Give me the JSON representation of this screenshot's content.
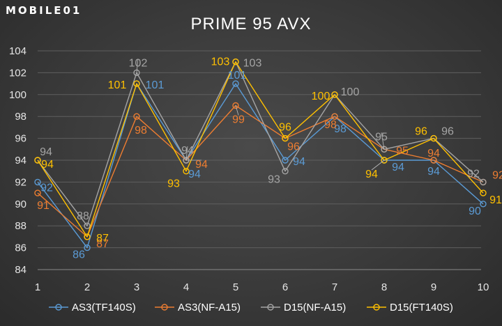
{
  "logo": {
    "text": "MOBILE01"
  },
  "chart_data": {
    "type": "line",
    "title": "PRIME 95 AVX",
    "xlabel": "",
    "ylabel": "",
    "categories": [
      "1",
      "2",
      "3",
      "4",
      "5",
      "6",
      "7",
      "8",
      "9",
      "10"
    ],
    "ylim": [
      84,
      104
    ],
    "yticks": [
      84,
      86,
      88,
      90,
      92,
      94,
      96,
      98,
      100,
      102,
      104
    ],
    "grid": true,
    "legend_position": "bottom",
    "series": [
      {
        "name": "AS3(TF140S)",
        "color": "#5b9bd5",
        "values": [
          92,
          86,
          101,
          94,
          101,
          94,
          98,
          94,
          94,
          90
        ]
      },
      {
        "name": "AS3(NF-A15)",
        "color": "#ed7d31",
        "values": [
          91,
          87,
          98,
          94,
          99,
          96,
          98,
          95,
          94,
          92
        ]
      },
      {
        "name": "D15(NF-A15)",
        "color": "#a5a5a5",
        "values": [
          94,
          88,
          102,
          94,
          103,
          93,
          100,
          95,
          96,
          92
        ]
      },
      {
        "name": "D15(FT140S)",
        "color": "#ffc000",
        "values": [
          94,
          87,
          101,
          93,
          103,
          96,
          100,
          94,
          96,
          91
        ]
      }
    ]
  }
}
